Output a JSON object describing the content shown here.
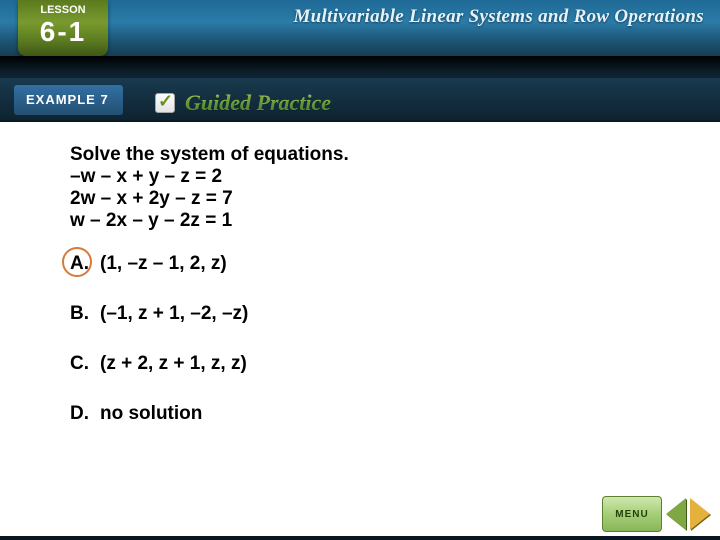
{
  "header": {
    "lesson_label": "LESSON",
    "lesson_number": "6-1",
    "chapter_title": "Multivariable Linear Systems and Row Operations",
    "example_label": "EXAMPLE 7",
    "guided_label": "Guided Practice"
  },
  "question": {
    "prompt": "Solve the system of equations.",
    "equations": [
      "–w – x + y – z = 2",
      "2w – x + 2y – z = 7",
      "w – 2x – y – 2z = 1"
    ]
  },
  "options": [
    {
      "letter": "A.",
      "text": "(1, –z – 1, 2, z)",
      "selected": true
    },
    {
      "letter": "B.",
      "text": "(–1, z + 1, –2, –z)",
      "selected": false
    },
    {
      "letter": "C.",
      "text": "(z + 2, z + 1, z, z)",
      "selected": false
    },
    {
      "letter": "D.",
      "text": " no solution",
      "selected": false
    }
  ],
  "nav": {
    "menu_label": "MENU"
  },
  "colors": {
    "header_blue": "#2b7ba8",
    "lesson_green": "#799a2e",
    "example_blue": "#3270a3",
    "guided_green": "#7bb542",
    "selected_ring": "#d67b3b",
    "nav_green": "#8ab65a",
    "nav_yellow": "#e4b13d"
  }
}
